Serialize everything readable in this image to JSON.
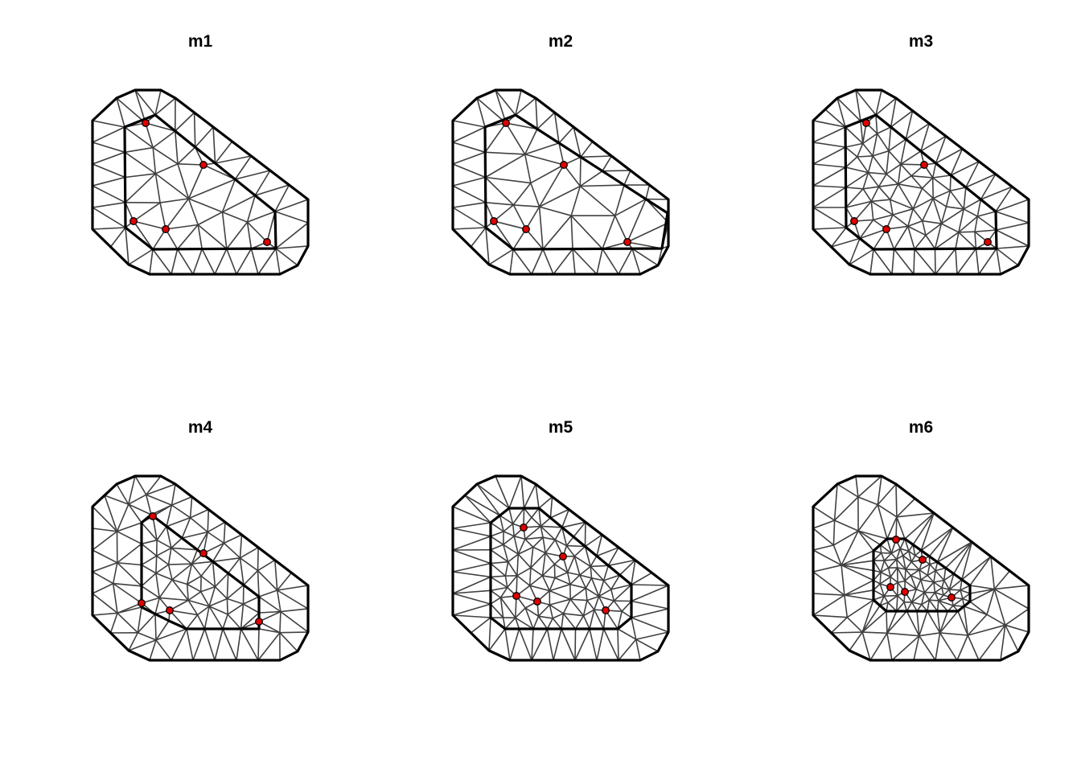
{
  "panels": [
    {
      "title": "m1",
      "mesh_density": "coarse"
    },
    {
      "title": "m2",
      "mesh_density": "coarse"
    },
    {
      "title": "m3",
      "mesh_density": "medium"
    },
    {
      "title": "m4",
      "mesh_density": "medium"
    },
    {
      "title": "m5",
      "mesh_density": "fine"
    },
    {
      "title": "m6",
      "mesh_density": "fine"
    }
  ],
  "colors": {
    "boundary": "#000000",
    "edges": "#404040",
    "points_fill": "#e00000",
    "points_stroke": "#000000",
    "background": "#ffffff"
  }
}
